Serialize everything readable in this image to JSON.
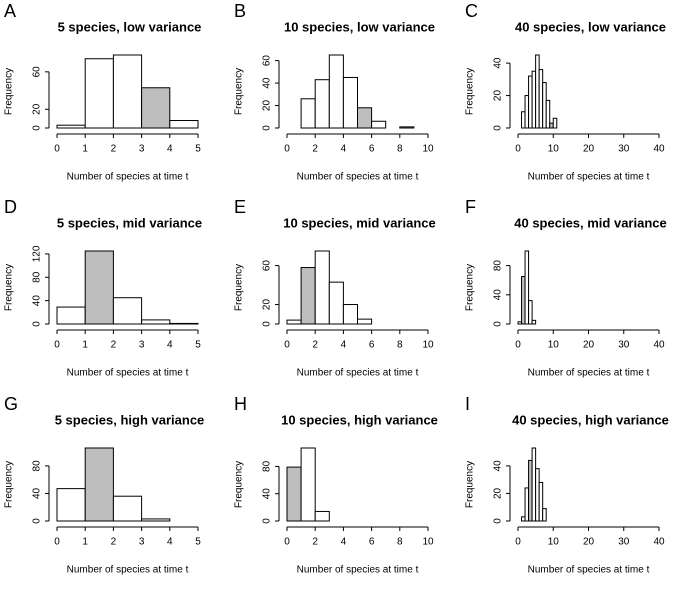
{
  "chart_data": [
    {
      "type": "histogram",
      "panel": "A",
      "title": "5 species, low variance",
      "xlabel": "Number of species at time t",
      "ylabel": "Frequency",
      "bins": [
        0,
        1,
        2,
        3,
        4,
        5
      ],
      "values": [
        3,
        74,
        78,
        43,
        8
      ],
      "color": "#ffffff",
      "highlight_bin": 3,
      "highlight_color": "#bebebe",
      "xlim": [
        0,
        5
      ],
      "xticks": [
        0,
        1,
        2,
        3,
        4,
        5
      ],
      "ylim": [
        0,
        78
      ],
      "yticks": [
        0,
        20,
        60
      ]
    },
    {
      "type": "histogram",
      "panel": "B",
      "title": "10 species, low variance",
      "xlabel": "Number of species at time t",
      "ylabel": "Frequency",
      "bins": [
        0,
        1,
        2,
        3,
        4,
        5,
        6,
        7,
        8,
        9,
        10
      ],
      "values": [
        0,
        26,
        43,
        65,
        45,
        18,
        6,
        0,
        1,
        0
      ],
      "color": "#ffffff",
      "highlight_bin": 5,
      "highlight_color": "#bebebe",
      "xlim": [
        0,
        10
      ],
      "xticks": [
        0,
        2,
        4,
        6,
        8,
        10
      ],
      "ylim": [
        0,
        65
      ],
      "yticks": [
        0,
        20,
        40,
        60
      ]
    },
    {
      "type": "histogram",
      "panel": "C",
      "title": "40 species, low variance",
      "xlabel": "Number of species at time t",
      "ylabel": "Frequency",
      "bins": [
        0,
        1,
        2,
        3,
        4,
        5,
        6,
        7,
        8,
        9,
        10,
        11,
        12,
        13,
        14,
        15,
        16,
        17,
        18,
        19,
        20,
        21,
        22,
        23,
        24,
        25,
        26,
        27,
        28,
        29,
        30,
        31,
        32,
        33,
        34,
        35,
        36,
        37,
        38,
        39,
        40
      ],
      "values": [
        0,
        10,
        20,
        32,
        35,
        45,
        36,
        28,
        17,
        3,
        6,
        0,
        0,
        0,
        0,
        0,
        0,
        0,
        0,
        0,
        0,
        0,
        0,
        0,
        0,
        0,
        0,
        0,
        0,
        0,
        0,
        0,
        0,
        0,
        0,
        0,
        0,
        0,
        0,
        0
      ],
      "color": "#ffffff",
      "highlight_bin": 9,
      "highlight_color": "#bebebe",
      "xlim": [
        0,
        40
      ],
      "xticks": [
        0,
        10,
        20,
        30,
        40
      ],
      "ylim": [
        0,
        45
      ],
      "yticks": [
        0,
        20,
        40
      ]
    },
    {
      "type": "histogram",
      "panel": "D",
      "title": "5 species, mid variance",
      "xlabel": "Number of species at time t",
      "ylabel": "Frequency",
      "bins": [
        0,
        1,
        2,
        3,
        4,
        5
      ],
      "values": [
        29,
        125,
        45,
        7,
        1
      ],
      "color": "#ffffff",
      "highlight_bin": 1,
      "highlight_color": "#bebebe",
      "xlim": [
        0,
        5
      ],
      "xticks": [
        0,
        1,
        2,
        3,
        4,
        5
      ],
      "ylim": [
        0,
        125
      ],
      "yticks": [
        0,
        40,
        80,
        120
      ]
    },
    {
      "type": "histogram",
      "panel": "E",
      "title": "10 species, mid variance",
      "xlabel": "Number of species at time t",
      "ylabel": "Frequency",
      "bins": [
        0,
        1,
        2,
        3,
        4,
        5,
        6,
        7,
        8,
        9,
        10
      ],
      "values": [
        4,
        58,
        75,
        43,
        20,
        5,
        0,
        0,
        0,
        0
      ],
      "color": "#ffffff",
      "highlight_bin": 1,
      "highlight_color": "#bebebe",
      "xlim": [
        0,
        10
      ],
      "xticks": [
        0,
        2,
        4,
        6,
        8,
        10
      ],
      "ylim": [
        0,
        75
      ],
      "yticks": [
        0,
        20,
        60
      ]
    },
    {
      "type": "histogram",
      "panel": "F",
      "title": "40 species, mid variance",
      "xlabel": "Number of species at time t",
      "ylabel": "Frequency",
      "bins": [
        0,
        1,
        2,
        3,
        4,
        5,
        6,
        7,
        8,
        9,
        10,
        11,
        12,
        13,
        14,
        15,
        16,
        17,
        18,
        19,
        20,
        21,
        22,
        23,
        24,
        25,
        26,
        27,
        28,
        29,
        30,
        31,
        32,
        33,
        34,
        35,
        36,
        37,
        38,
        39,
        40
      ],
      "values": [
        3,
        65,
        100,
        32,
        5,
        0,
        0,
        0,
        0,
        0,
        0,
        0,
        0,
        0,
        0,
        0,
        0,
        0,
        0,
        0,
        0,
        0,
        0,
        0,
        0,
        0,
        0,
        0,
        0,
        0,
        0,
        0,
        0,
        0,
        0,
        0,
        0,
        0,
        0,
        0
      ],
      "color": "#ffffff",
      "highlight_bin": 1,
      "highlight_color": "#bebebe",
      "xlim": [
        0,
        40
      ],
      "xticks": [
        0,
        10,
        20,
        30,
        40
      ],
      "ylim": [
        0,
        100
      ],
      "yticks": [
        0,
        40,
        80
      ]
    },
    {
      "type": "histogram",
      "panel": "G",
      "title": "5 species, high variance",
      "xlabel": "Number of species at time t",
      "ylabel": "Frequency",
      "bins": [
        0,
        1,
        2,
        3,
        4,
        5
      ],
      "values": [
        47,
        106,
        36,
        3,
        0
      ],
      "color": "#ffffff",
      "highlight_bin": 1,
      "highlight_color": "#bebebe",
      "xlim": [
        0,
        5
      ],
      "xticks": [
        0,
        1,
        2,
        3,
        4,
        5
      ],
      "ylim": [
        0,
        106
      ],
      "yticks": [
        0,
        40,
        80
      ]
    },
    {
      "type": "histogram",
      "panel": "H",
      "title": "10 species, high variance",
      "xlabel": "Number of species at time t",
      "ylabel": "Frequency",
      "bins": [
        0,
        1,
        2,
        3,
        4,
        5,
        6,
        7,
        8,
        9,
        10
      ],
      "values": [
        79,
        107,
        14,
        0,
        0,
        0,
        0,
        0,
        0,
        0
      ],
      "color": "#ffffff",
      "highlight_bin": 0,
      "highlight_color": "#bebebe",
      "xlim": [
        0,
        10
      ],
      "xticks": [
        0,
        2,
        4,
        6,
        8,
        10
      ],
      "ylim": [
        0,
        107
      ],
      "yticks": [
        0,
        40,
        80
      ]
    },
    {
      "type": "histogram",
      "panel": "I",
      "title": "40 species, high variance",
      "xlabel": "Number of species at time t",
      "ylabel": "Frequency",
      "bins": [
        0,
        1,
        2,
        3,
        4,
        5,
        6,
        7,
        8,
        9,
        10,
        11,
        12,
        13,
        14,
        15,
        16,
        17,
        18,
        19,
        20,
        21,
        22,
        23,
        24,
        25,
        26,
        27,
        28,
        29,
        30,
        31,
        32,
        33,
        34,
        35,
        36,
        37,
        38,
        39,
        40
      ],
      "values": [
        0,
        3,
        24,
        44,
        53,
        38,
        28,
        9,
        0,
        0,
        0,
        0,
        0,
        0,
        0,
        0,
        0,
        0,
        0,
        0,
        0,
        0,
        0,
        0,
        0,
        0,
        0,
        0,
        0,
        0,
        0,
        0,
        0,
        0,
        0,
        0,
        0,
        0,
        0,
        0
      ],
      "color": "#ffffff",
      "highlight_bin": 3,
      "highlight_color": "#bebebe",
      "xlim": [
        0,
        40
      ],
      "xticks": [
        0,
        10,
        20,
        30,
        40
      ],
      "ylim": [
        0,
        53
      ],
      "yticks": [
        0,
        20,
        40
      ]
    }
  ]
}
